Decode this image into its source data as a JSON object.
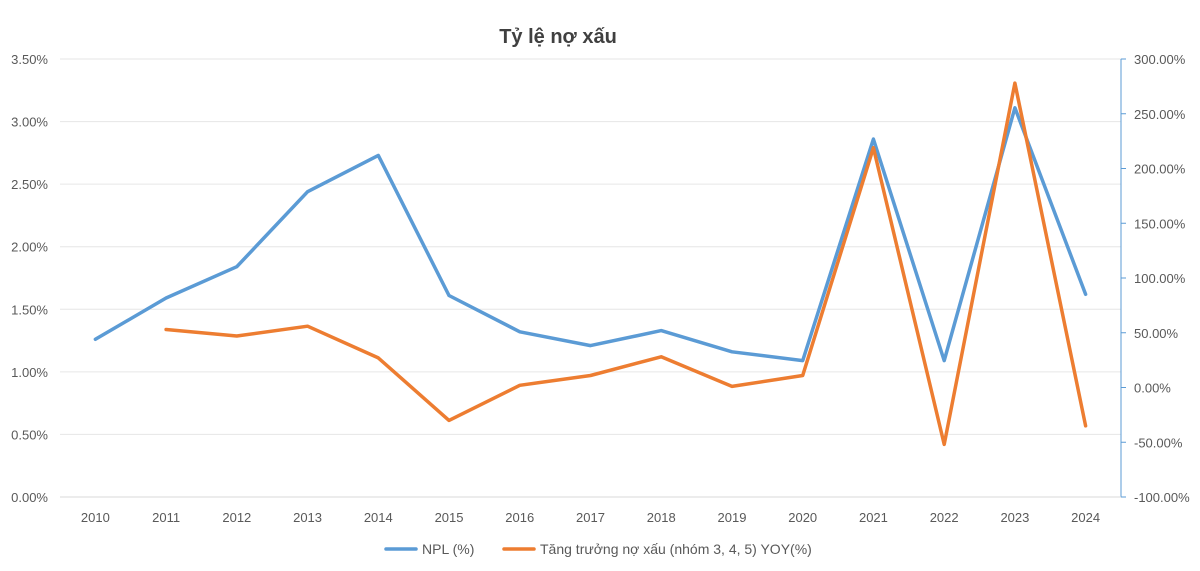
{
  "chart_data": {
    "type": "line",
    "title": "Tỷ lệ nợ xấu",
    "categories": [
      "2010",
      "2011",
      "2012",
      "2013",
      "2014",
      "2015",
      "2016",
      "2017",
      "2018",
      "2019",
      "2020",
      "2021",
      "2022",
      "2023",
      "2024"
    ],
    "left_axis": {
      "range": [
        0,
        3.5
      ],
      "ticks": [
        0,
        0.5,
        1.0,
        1.5,
        2.0,
        2.5,
        3.0,
        3.5
      ],
      "tick_labels": [
        "0.00%",
        "0.50%",
        "1.00%",
        "1.50%",
        "2.00%",
        "2.50%",
        "3.00%",
        "3.50%"
      ]
    },
    "right_axis": {
      "range": [
        -100,
        300
      ],
      "ticks": [
        -100,
        -50,
        0,
        50,
        100,
        150,
        200,
        250,
        300
      ],
      "tick_labels": [
        "-100.00%",
        "-50.00%",
        "0.00%",
        "50.00%",
        "100.00%",
        "150.00%",
        "200.00%",
        "250.00%",
        "300.00%"
      ]
    },
    "series": [
      {
        "name": "NPL (%)",
        "axis": "left",
        "color": "#5b9bd5",
        "values": [
          1.26,
          1.59,
          1.84,
          2.44,
          2.73,
          1.61,
          1.32,
          1.21,
          1.33,
          1.16,
          1.09,
          2.86,
          1.09,
          3.11,
          1.62
        ]
      },
      {
        "name": "Tăng trưởng nợ xấu (nhóm 3, 4, 5) YOY(%)",
        "axis": "right",
        "color": "#ed7d31",
        "values": [
          null,
          53,
          47,
          56,
          27,
          -30,
          2,
          11,
          28,
          1,
          11,
          219,
          -52,
          278,
          -35
        ]
      }
    ],
    "grid": true,
    "legend": "bottom-center"
  }
}
